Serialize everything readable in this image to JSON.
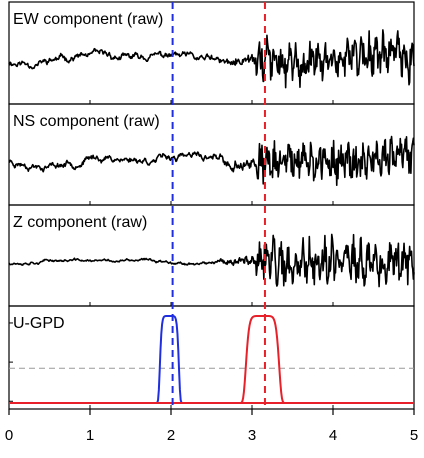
{
  "chart_data": {
    "type": "line",
    "x_range": [
      0,
      5
    ],
    "x_ticks": [
      "0",
      "1",
      "2",
      "3",
      "4",
      "5"
    ],
    "x_tick_values": [
      0,
      1,
      2,
      3,
      4,
      5
    ],
    "markers": [
      {
        "x": 2.02,
        "color": "#1f2fe0",
        "style": "dashed"
      },
      {
        "x": 3.16,
        "color": "#e8202a",
        "style": "dashed"
      }
    ],
    "panels": [
      {
        "title": "EW component (raw)",
        "noise_amp": 0.9,
        "signal_amp": 2.3,
        "onset": 3.05,
        "seed": 11
      },
      {
        "title": "NS component (raw)",
        "noise_amp": 0.9,
        "signal_amp": 2.2,
        "onset": 3.05,
        "seed": 23
      },
      {
        "title": "Z component (raw)",
        "noise_amp": 0.35,
        "signal_amp": 2.6,
        "onset": 3.05,
        "seed": 37
      },
      {
        "title": "U-GPD",
        "ylim": [
          0,
          1
        ],
        "threshold": 0.4,
        "threshold_color": "#999999",
        "series": [
          {
            "color": "#1f2fe0",
            "center": 1.98,
            "half_width": 0.12,
            "max": 1.0
          },
          {
            "color": "#e8202a",
            "center": 3.13,
            "half_width": 0.21,
            "max": 1.0
          },
          {
            "color": "#e8202a",
            "baseline": true
          }
        ]
      }
    ]
  }
}
